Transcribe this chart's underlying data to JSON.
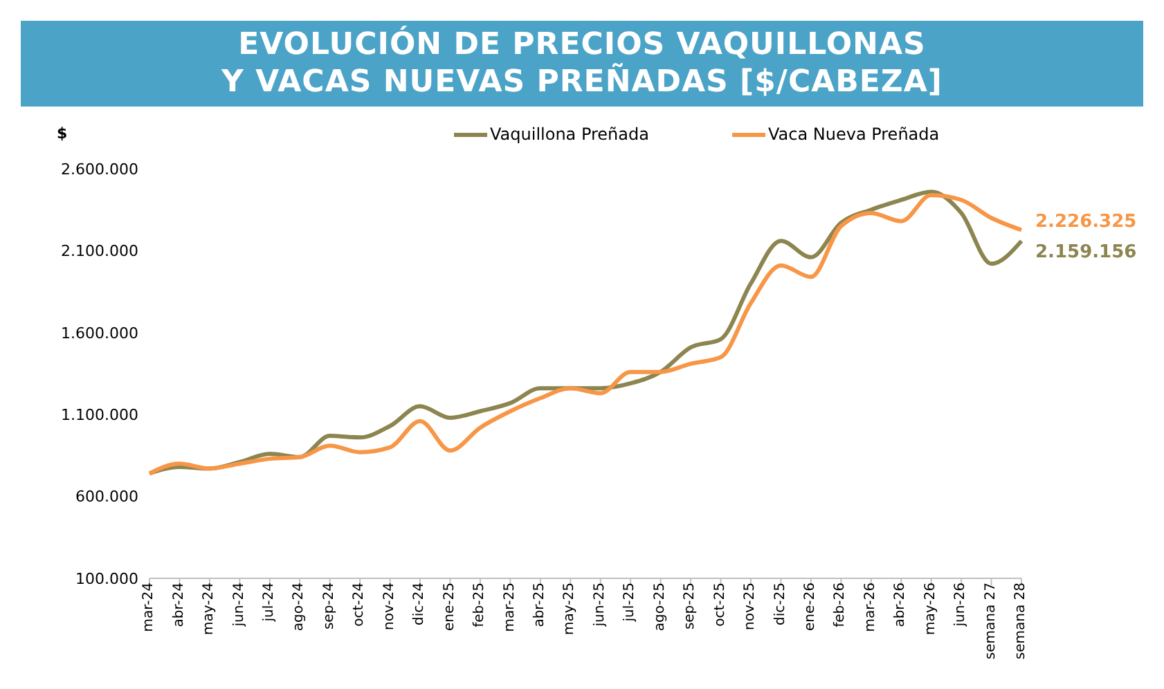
{
  "chart_data": {
    "type": "line",
    "title": "EVOLUCIÓN DE PRECIOS VAQUILLONAS\nY VACAS NUEVAS PREÑADAS [$/CABEZA]",
    "ylabel": "$",
    "categories": [
      "mar-24",
      "abr-24",
      "may-24",
      "jun-24",
      "jul-24",
      "ago-24",
      "sep-24",
      "oct-24",
      "nov-24",
      "dic-24",
      "ene-25",
      "feb-25",
      "mar-25",
      "abr-25",
      "may-25",
      "jun-25",
      "jul-25",
      "ago-25",
      "sep-25",
      "oct-25",
      "nov-25",
      "dic-25",
      "ene-26",
      "feb-26",
      "mar-26",
      "abr-26",
      "may-26",
      "jun-26",
      "semana 27",
      "semana 28"
    ],
    "series": [
      {
        "name": "Vaquillona Preñada",
        "color": "#8c8550",
        "values": [
          740000,
          780000,
          770000,
          810000,
          860000,
          840000,
          970000,
          960000,
          1030000,
          1150000,
          1080000,
          1120000,
          1170000,
          1260000,
          1260000,
          1260000,
          1290000,
          1360000,
          1510000,
          1560000,
          1900000,
          2160000,
          2060000,
          2270000,
          2350000,
          2410000,
          2460000,
          2330000,
          2020000,
          2159156
        ],
        "value_labels": [
          null,
          null,
          null,
          null,
          null,
          null,
          null,
          null,
          null,
          null,
          null,
          null,
          null,
          null,
          null,
          null,
          null,
          null,
          null,
          null,
          null,
          null,
          null,
          null,
          null,
          null,
          null,
          null,
          null,
          "2.159.156"
        ]
      },
      {
        "name": "Vaca Nueva Preñada",
        "color": "#f79646",
        "values": [
          740000,
          800000,
          770000,
          800000,
          830000,
          840000,
          910000,
          870000,
          900000,
          1060000,
          880000,
          1020000,
          1120000,
          1200000,
          1260000,
          1230000,
          1360000,
          1360000,
          1410000,
          1450000,
          1780000,
          2010000,
          1940000,
          2250000,
          2330000,
          2280000,
          2440000,
          2410000,
          2300000,
          2226325
        ],
        "value_labels": [
          null,
          null,
          null,
          null,
          null,
          null,
          null,
          null,
          null,
          null,
          null,
          null,
          null,
          null,
          null,
          null,
          null,
          null,
          null,
          null,
          null,
          null,
          null,
          null,
          null,
          null,
          null,
          null,
          null,
          "2.226.325"
        ]
      }
    ],
    "ylim": [
      100000,
      2600000
    ],
    "yticks": [
      {
        "value": 100000,
        "label": "100.000"
      },
      {
        "value": 600000,
        "label": "600.000"
      },
      {
        "value": 1100000,
        "label": "1.100.000"
      },
      {
        "value": 1600000,
        "label": "1.600.000"
      },
      {
        "value": 2100000,
        "label": "2.100.000"
      },
      {
        "value": 2600000,
        "label": "2.600.000"
      }
    ],
    "grid": false,
    "legend": "top",
    "marker": "none",
    "line_style": "solid"
  }
}
